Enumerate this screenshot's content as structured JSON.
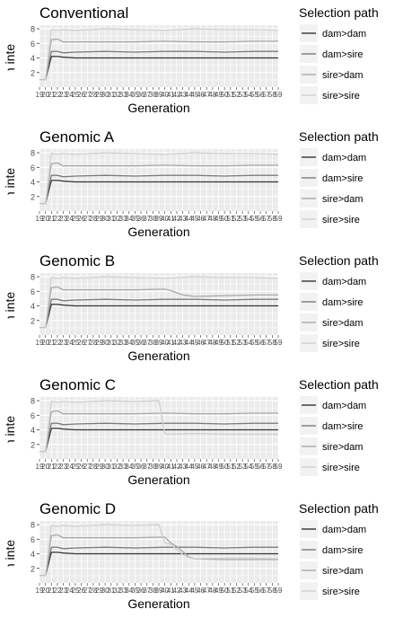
{
  "chart_data": [
    {
      "type": "line",
      "title": "Conventional",
      "xlabel": "Generation",
      "ylabel": "Generation interval [years]",
      "ylim": [
        0,
        8.5
      ],
      "yticks": [
        2,
        4,
        6,
        8
      ],
      "xlim": [
        19,
        59
      ],
      "xtick_labels": [
        "19",
        "20",
        "21",
        "22",
        "23",
        "24",
        "25",
        "26",
        "27",
        "28",
        "29",
        "30",
        "31",
        "32",
        "33",
        "34",
        "35",
        "36",
        "37",
        "38",
        "39",
        "40",
        "41",
        "42",
        "43",
        "44",
        "45",
        "46",
        "47",
        "48",
        "49",
        "50",
        "51",
        "52",
        "53",
        "54",
        "55",
        "56",
        "57",
        "58",
        "59"
      ],
      "legend_title": "Selection path",
      "legend_position": "right",
      "grid": true,
      "series": [
        {
          "name": "dam>dam",
          "color": "#333333",
          "x": [
            19,
            20,
            21,
            22,
            23,
            25,
            30,
            35,
            40,
            45,
            50,
            55,
            59
          ],
          "values": [
            1,
            1,
            4.2,
            4.2,
            4.1,
            4.0,
            4.0,
            4.0,
            4.0,
            4.0,
            4.0,
            4.0,
            4.0
          ]
        },
        {
          "name": "dam>sire",
          "color": "#7a7a7a",
          "x": [
            19,
            20,
            21,
            22,
            23,
            25,
            30,
            35,
            40,
            45,
            50,
            55,
            59
          ],
          "values": [
            1,
            1,
            4.9,
            4.9,
            4.7,
            4.8,
            4.9,
            4.8,
            4.9,
            4.9,
            4.8,
            4.9,
            4.9
          ]
        },
        {
          "name": "sire>dam",
          "color": "#a9a9a9",
          "x": [
            19,
            20,
            21,
            22,
            23,
            25,
            30,
            35,
            40,
            45,
            50,
            55,
            59
          ],
          "values": [
            1,
            1,
            6.5,
            6.6,
            6.2,
            6.2,
            6.2,
            6.2,
            6.3,
            6.2,
            6.2,
            6.3,
            6.3
          ]
        },
        {
          "name": "sire>sire",
          "color": "#cfcfcf",
          "x": [
            19,
            20,
            21,
            22,
            23,
            25,
            30,
            35,
            40,
            45,
            50,
            55,
            59
          ],
          "values": [
            1,
            1,
            7.9,
            7.8,
            7.9,
            7.8,
            8.0,
            7.9,
            7.8,
            8.0,
            7.9,
            7.9,
            7.8
          ]
        }
      ]
    },
    {
      "type": "line",
      "title": "Genomic A",
      "xlabel": "Generation",
      "ylabel": "Generation interval [years]",
      "ylim": [
        0,
        8.5
      ],
      "yticks": [
        2,
        4,
        6,
        8
      ],
      "xlim": [
        19,
        59
      ],
      "xtick_labels": [
        "19",
        "20",
        "21",
        "22",
        "23",
        "24",
        "25",
        "26",
        "27",
        "28",
        "29",
        "30",
        "31",
        "32",
        "33",
        "34",
        "35",
        "36",
        "37",
        "38",
        "39",
        "40",
        "41",
        "42",
        "43",
        "44",
        "45",
        "46",
        "47",
        "48",
        "49",
        "50",
        "51",
        "52",
        "53",
        "54",
        "55",
        "56",
        "57",
        "58",
        "59"
      ],
      "legend_title": "Selection path",
      "legend_position": "right",
      "grid": true,
      "series": [
        {
          "name": "dam>dam",
          "color": "#333333",
          "x": [
            19,
            20,
            21,
            22,
            23,
            25,
            30,
            35,
            40,
            45,
            50,
            55,
            59
          ],
          "values": [
            1,
            1,
            4.2,
            4.2,
            4.1,
            4.0,
            4.0,
            4.0,
            4.0,
            4.0,
            4.0,
            4.0,
            4.0
          ]
        },
        {
          "name": "dam>sire",
          "color": "#7a7a7a",
          "x": [
            19,
            20,
            21,
            22,
            23,
            25,
            30,
            35,
            40,
            45,
            50,
            55,
            59
          ],
          "values": [
            1,
            1,
            4.9,
            4.9,
            4.7,
            4.8,
            4.9,
            4.8,
            4.9,
            4.9,
            4.8,
            4.9,
            4.9
          ]
        },
        {
          "name": "sire>dam",
          "color": "#a9a9a9",
          "x": [
            19,
            20,
            21,
            22,
            23,
            25,
            30,
            35,
            40,
            45,
            50,
            55,
            59
          ],
          "values": [
            1,
            1,
            6.5,
            6.6,
            6.2,
            6.2,
            6.2,
            6.2,
            6.3,
            6.2,
            6.2,
            6.3,
            6.3
          ]
        },
        {
          "name": "sire>sire",
          "color": "#cfcfcf",
          "x": [
            19,
            20,
            21,
            22,
            23,
            25,
            30,
            35,
            40,
            45,
            50,
            55,
            59
          ],
          "values": [
            1,
            1,
            7.9,
            7.8,
            7.9,
            7.8,
            8.0,
            7.9,
            7.8,
            8.0,
            7.9,
            7.9,
            7.8
          ]
        }
      ]
    },
    {
      "type": "line",
      "title": "Genomic B",
      "xlabel": "Generation",
      "ylabel": "Generation interval [years]",
      "ylim": [
        0,
        8.5
      ],
      "yticks": [
        2,
        4,
        6,
        8
      ],
      "xlim": [
        19,
        59
      ],
      "xtick_labels": [
        "19",
        "20",
        "21",
        "22",
        "23",
        "24",
        "25",
        "26",
        "27",
        "28",
        "29",
        "30",
        "31",
        "32",
        "33",
        "34",
        "35",
        "36",
        "37",
        "38",
        "39",
        "40",
        "41",
        "42",
        "43",
        "44",
        "45",
        "46",
        "47",
        "48",
        "49",
        "50",
        "51",
        "52",
        "53",
        "54",
        "55",
        "56",
        "57",
        "58",
        "59"
      ],
      "legend_title": "Selection path",
      "legend_position": "right",
      "grid": true,
      "series": [
        {
          "name": "dam>dam",
          "color": "#333333",
          "x": [
            19,
            20,
            21,
            22,
            23,
            25,
            30,
            35,
            40,
            45,
            50,
            55,
            59
          ],
          "values": [
            1,
            1,
            4.2,
            4.2,
            4.1,
            4.0,
            4.0,
            4.0,
            4.0,
            4.0,
            4.0,
            4.0,
            4.0
          ]
        },
        {
          "name": "dam>sire",
          "color": "#7a7a7a",
          "x": [
            19,
            20,
            21,
            22,
            23,
            25,
            30,
            35,
            40,
            45,
            50,
            55,
            59
          ],
          "values": [
            1,
            1,
            4.9,
            4.9,
            4.7,
            4.8,
            4.9,
            4.8,
            4.9,
            4.9,
            4.8,
            4.9,
            4.9
          ]
        },
        {
          "name": "sire>dam",
          "color": "#a9a9a9",
          "x": [
            19,
            20,
            21,
            22,
            23,
            25,
            30,
            35,
            40,
            41,
            42,
            43,
            44,
            45,
            50,
            55,
            59
          ],
          "values": [
            1,
            1,
            6.5,
            6.6,
            6.2,
            6.2,
            6.2,
            6.2,
            6.3,
            6.1,
            5.8,
            5.5,
            5.4,
            5.3,
            5.4,
            5.5,
            5.5
          ]
        },
        {
          "name": "sire>sire",
          "color": "#cfcfcf",
          "x": [
            19,
            20,
            21,
            22,
            23,
            25,
            30,
            35,
            40,
            45,
            50,
            55,
            59
          ],
          "values": [
            1,
            1,
            7.9,
            7.8,
            7.9,
            7.8,
            8.0,
            7.9,
            7.8,
            8.0,
            7.9,
            7.9,
            7.8
          ]
        }
      ]
    },
    {
      "type": "line",
      "title": "Genomic C",
      "xlabel": "Generation",
      "ylabel": "Generation interval [years]",
      "ylim": [
        0,
        8.5
      ],
      "yticks": [
        2,
        4,
        6,
        8
      ],
      "xlim": [
        19,
        59
      ],
      "xtick_labels": [
        "19",
        "20",
        "21",
        "22",
        "23",
        "24",
        "25",
        "26",
        "27",
        "28",
        "29",
        "30",
        "31",
        "32",
        "33",
        "34",
        "35",
        "36",
        "37",
        "38",
        "39",
        "40",
        "41",
        "42",
        "43",
        "44",
        "45",
        "46",
        "47",
        "48",
        "49",
        "50",
        "51",
        "52",
        "53",
        "54",
        "55",
        "56",
        "57",
        "58",
        "59"
      ],
      "legend_title": "Selection path",
      "legend_position": "right",
      "grid": true,
      "series": [
        {
          "name": "dam>dam",
          "color": "#333333",
          "x": [
            19,
            20,
            21,
            22,
            23,
            25,
            30,
            35,
            40,
            45,
            50,
            55,
            59
          ],
          "values": [
            1,
            1,
            4.2,
            4.2,
            4.1,
            4.0,
            4.0,
            4.0,
            4.0,
            4.0,
            4.0,
            4.0,
            4.0
          ]
        },
        {
          "name": "dam>sire",
          "color": "#7a7a7a",
          "x": [
            19,
            20,
            21,
            22,
            23,
            25,
            30,
            35,
            40,
            45,
            50,
            55,
            59
          ],
          "values": [
            1,
            1,
            4.9,
            4.9,
            4.7,
            4.8,
            4.9,
            4.8,
            4.9,
            4.9,
            4.8,
            4.9,
            4.9
          ]
        },
        {
          "name": "sire>dam",
          "color": "#a9a9a9",
          "x": [
            19,
            20,
            21,
            22,
            23,
            25,
            30,
            35,
            40,
            45,
            50,
            55,
            59
          ],
          "values": [
            1,
            1,
            6.5,
            6.6,
            6.2,
            6.2,
            6.2,
            6.2,
            6.3,
            6.2,
            6.2,
            6.3,
            6.3
          ]
        },
        {
          "name": "sire>sire",
          "color": "#cfcfcf",
          "x": [
            19,
            20,
            21,
            22,
            23,
            25,
            30,
            35,
            39,
            40,
            41,
            45,
            50,
            55,
            59
          ],
          "values": [
            1,
            1,
            7.9,
            7.8,
            7.9,
            7.8,
            8.0,
            7.9,
            8.0,
            3.5,
            3.4,
            3.5,
            3.4,
            3.4,
            3.4
          ]
        }
      ]
    },
    {
      "type": "line",
      "title": "Genomic D",
      "xlabel": "Generation",
      "ylabel": "Generation interval [years]",
      "ylim": [
        0,
        8.5
      ],
      "yticks": [
        2,
        4,
        6,
        8
      ],
      "xlim": [
        19,
        59
      ],
      "xtick_labels": [
        "19",
        "20",
        "21",
        "22",
        "23",
        "24",
        "25",
        "26",
        "27",
        "28",
        "29",
        "30",
        "31",
        "32",
        "33",
        "34",
        "35",
        "36",
        "37",
        "38",
        "39",
        "40",
        "41",
        "42",
        "43",
        "44",
        "45",
        "46",
        "47",
        "48",
        "49",
        "50",
        "51",
        "52",
        "53",
        "54",
        "55",
        "56",
        "57",
        "58",
        "59"
      ],
      "legend_title": "Selection path",
      "legend_position": "right",
      "grid": true,
      "series": [
        {
          "name": "dam>dam",
          "color": "#333333",
          "x": [
            19,
            20,
            21,
            22,
            23,
            25,
            30,
            35,
            40,
            45,
            50,
            55,
            59
          ],
          "values": [
            1,
            1,
            4.2,
            4.2,
            4.1,
            4.0,
            4.0,
            4.0,
            4.0,
            4.0,
            4.0,
            4.0,
            4.0
          ]
        },
        {
          "name": "dam>sire",
          "color": "#7a7a7a",
          "x": [
            19,
            20,
            21,
            22,
            23,
            25,
            30,
            35,
            40,
            45,
            50,
            55,
            59
          ],
          "values": [
            1,
            1,
            4.9,
            4.9,
            4.7,
            4.8,
            4.9,
            4.8,
            4.9,
            4.9,
            4.8,
            4.9,
            4.9
          ]
        },
        {
          "name": "sire>dam",
          "color": "#a9a9a9",
          "x": [
            19,
            20,
            21,
            22,
            23,
            25,
            30,
            35,
            40,
            41,
            42,
            43,
            44,
            45,
            50,
            55,
            59
          ],
          "values": [
            1,
            1,
            6.5,
            6.6,
            6.2,
            6.2,
            6.2,
            6.2,
            6.3,
            5.5,
            5.0,
            4.3,
            3.6,
            3.3,
            3.2,
            3.2,
            3.2
          ]
        },
        {
          "name": "sire>sire",
          "color": "#cfcfcf",
          "x": [
            19,
            20,
            21,
            22,
            23,
            25,
            30,
            35,
            39,
            40,
            41,
            42,
            43,
            44,
            45,
            50,
            55,
            59
          ],
          "values": [
            1,
            1,
            7.9,
            7.8,
            7.9,
            7.8,
            8.0,
            7.9,
            8.0,
            5.5,
            5.3,
            4.6,
            3.9,
            3.5,
            3.3,
            3.4,
            3.4,
            3.3
          ]
        }
      ]
    }
  ]
}
